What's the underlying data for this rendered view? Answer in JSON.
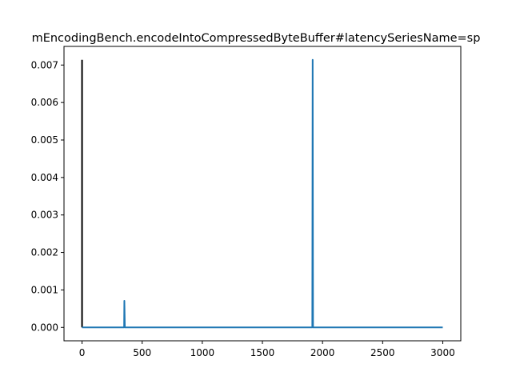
{
  "chart_data": {
    "type": "line",
    "title": "mEncodingBench.encodeIntoCompressedByteBuffer#latencySeriesName=sp",
    "xlabel": "",
    "ylabel": "",
    "xlim": [
      -150,
      3150
    ],
    "ylim": [
      -0.000357,
      0.007497
    ],
    "x_ticks": [
      0,
      500,
      1000,
      1500,
      2000,
      2500,
      3000
    ],
    "x_tick_labels": [
      "0",
      "500",
      "1000",
      "1500",
      "2000",
      "2500",
      "3000"
    ],
    "y_ticks": [
      0.0,
      0.001,
      0.002,
      0.003,
      0.004,
      0.005,
      0.006,
      0.007
    ],
    "y_tick_labels": [
      "0.000",
      "0.001",
      "0.002",
      "0.003",
      "0.004",
      "0.005",
      "0.006",
      "0.007"
    ],
    "grid": false,
    "series": [
      {
        "color": "#000000",
        "points": [
          [
            0,
            0.00714
          ],
          [
            0,
            0.0
          ]
        ]
      },
      {
        "color": "#1f77b4",
        "points": [
          [
            0,
            0.0
          ],
          [
            350,
            0.0
          ],
          [
            352,
            0.00071
          ],
          [
            356,
            0.0
          ],
          [
            357,
            0.0
          ],
          [
            1915,
            0.0
          ],
          [
            1918,
            0.00714
          ],
          [
            1921,
            0.0
          ],
          [
            1922,
            0.0
          ],
          [
            3000,
            0.0
          ]
        ]
      }
    ]
  }
}
